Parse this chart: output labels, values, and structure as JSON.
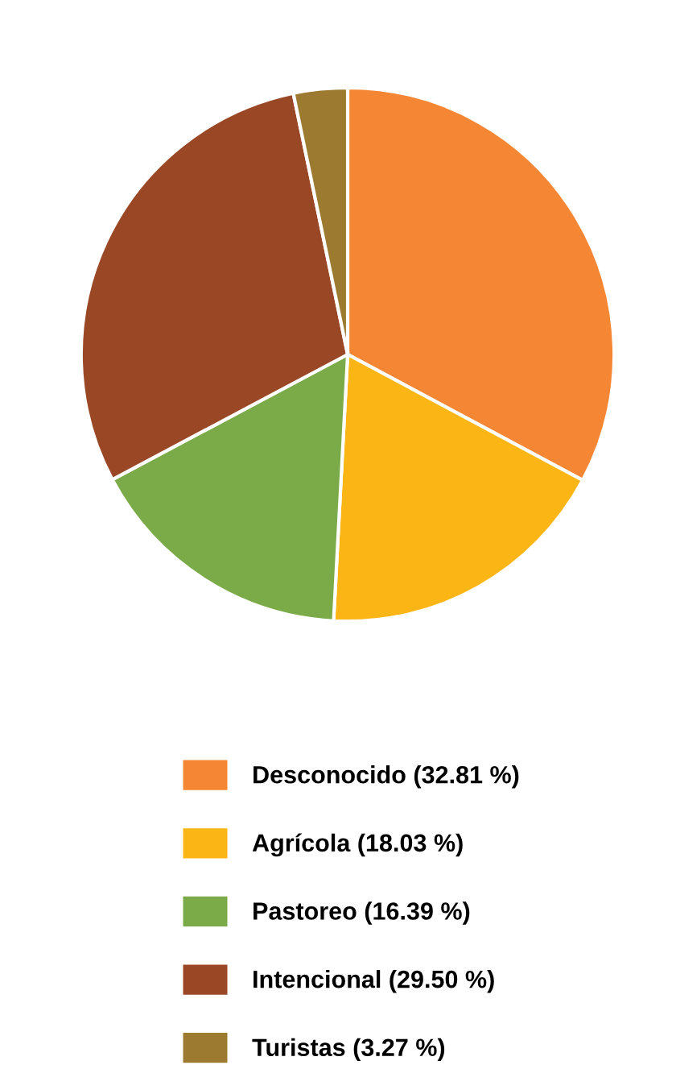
{
  "chart_data": {
    "type": "pie",
    "categories": [
      "Desconocido (32.81 %)",
      "Agrícola (18.03 %)",
      "Pastoreo (16.39 %)",
      "Intencional (29.50 %)",
      "Turistas (3.27 %)"
    ],
    "values": [
      32.81,
      18.03,
      16.39,
      29.5,
      3.27
    ],
    "colors": [
      "#f58634",
      "#fbb616",
      "#7aab48",
      "#9a4725",
      "#9c7a30"
    ],
    "legend": "bottom"
  }
}
